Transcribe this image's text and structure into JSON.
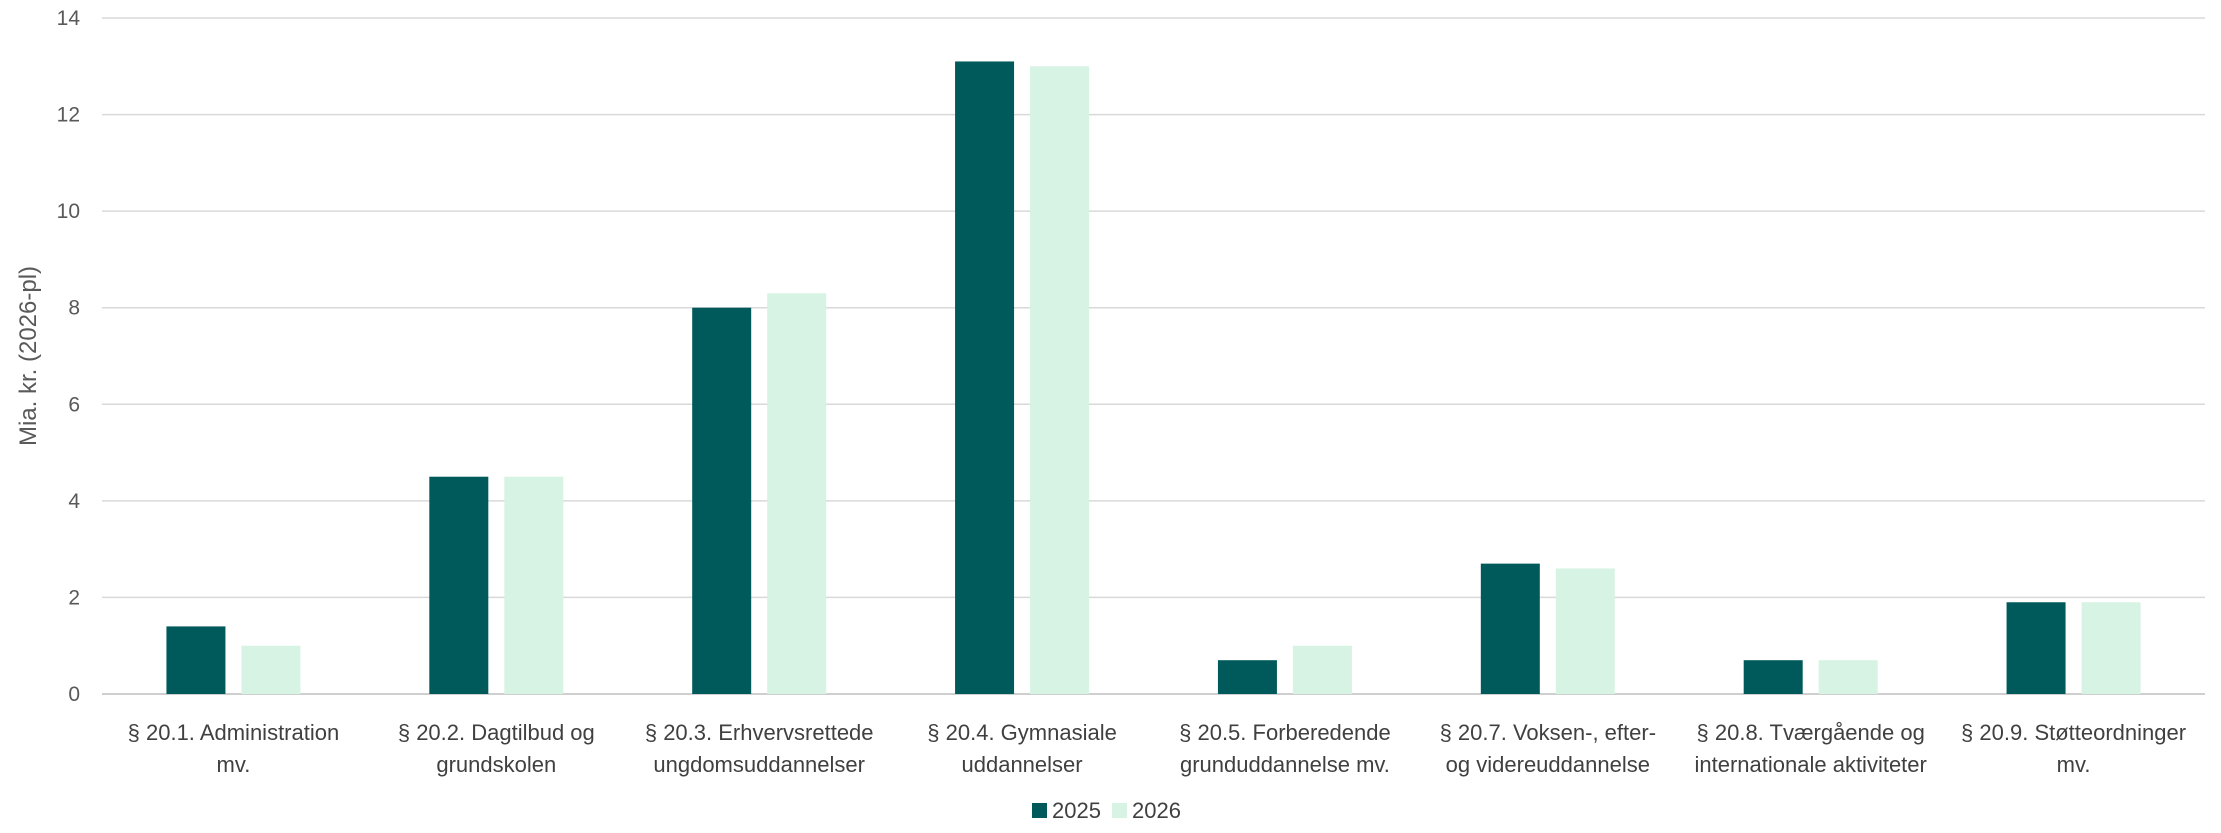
{
  "chart_data": {
    "type": "bar",
    "ylabel": "Mia. kr. (2026-pl)",
    "xlabel": "",
    "ylim": [
      0,
      14
    ],
    "yticks": [
      0,
      2,
      4,
      6,
      8,
      10,
      12,
      14
    ],
    "grid": true,
    "legend": "bottom-center",
    "categories": [
      [
        "§ 20.1. Administration",
        "mv."
      ],
      [
        "§ 20.2. Dagtilbud og",
        "grundskolen"
      ],
      [
        "§ 20.3. Erhvervsrettede",
        "ungdomsuddannelser"
      ],
      [
        "§ 20.4. Gymnasiale",
        "uddannelser"
      ],
      [
        "§ 20.5. Forberedende",
        "grunduddannelse mv."
      ],
      [
        "§ 20.7. Voksen-, efter-",
        "og videreuddannelse"
      ],
      [
        "§ 20.8. Tværgående og",
        "internationale aktiviteter"
      ],
      [
        "§ 20.9. Støtteordninger",
        "mv."
      ]
    ],
    "series": [
      {
        "name": "2025",
        "color": "#005a5b",
        "values": [
          1.4,
          4.5,
          8.0,
          13.1,
          0.7,
          2.7,
          0.7,
          1.9
        ]
      },
      {
        "name": "2026",
        "color": "#d6f3e3",
        "values": [
          1.0,
          4.5,
          8.3,
          13.0,
          1.0,
          2.6,
          0.7,
          1.9
        ]
      }
    ]
  }
}
